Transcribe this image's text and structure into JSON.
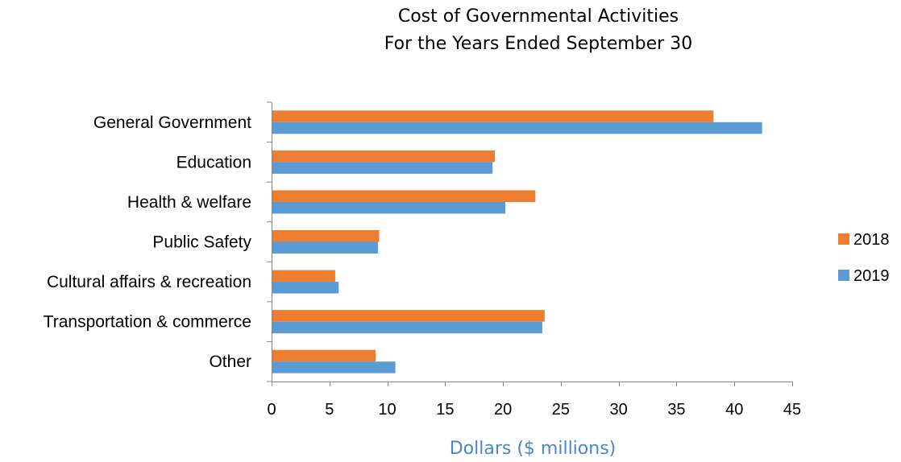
{
  "chart_data": {
    "type": "bar",
    "orientation": "horizontal",
    "title_lines": [
      "Cost of Governmental Activities",
      "For the Years Ended September 30"
    ],
    "categories": [
      "General Government",
      "Education",
      "Health & welfare",
      "Public Safety",
      "Cultural affairs & recreation",
      "Transportation & commerce",
      "Other"
    ],
    "series": [
      {
        "name": "2018",
        "color": "#ED7D31",
        "values": [
          38.2,
          19.3,
          22.8,
          9.3,
          5.5,
          23.6,
          9.0
        ]
      },
      {
        "name": "2019",
        "color": "#5B9BD5",
        "values": [
          42.4,
          19.1,
          20.2,
          9.2,
          5.8,
          23.4,
          10.7
        ]
      }
    ],
    "xlabel": "Dollars ($ millions)",
    "xlabel_color": "#4A86C8",
    "xlim": [
      0,
      45
    ],
    "xticks": [
      0,
      5,
      10,
      15,
      20,
      25,
      30,
      35,
      40,
      45
    ],
    "grid": false,
    "legend_position": "right"
  }
}
